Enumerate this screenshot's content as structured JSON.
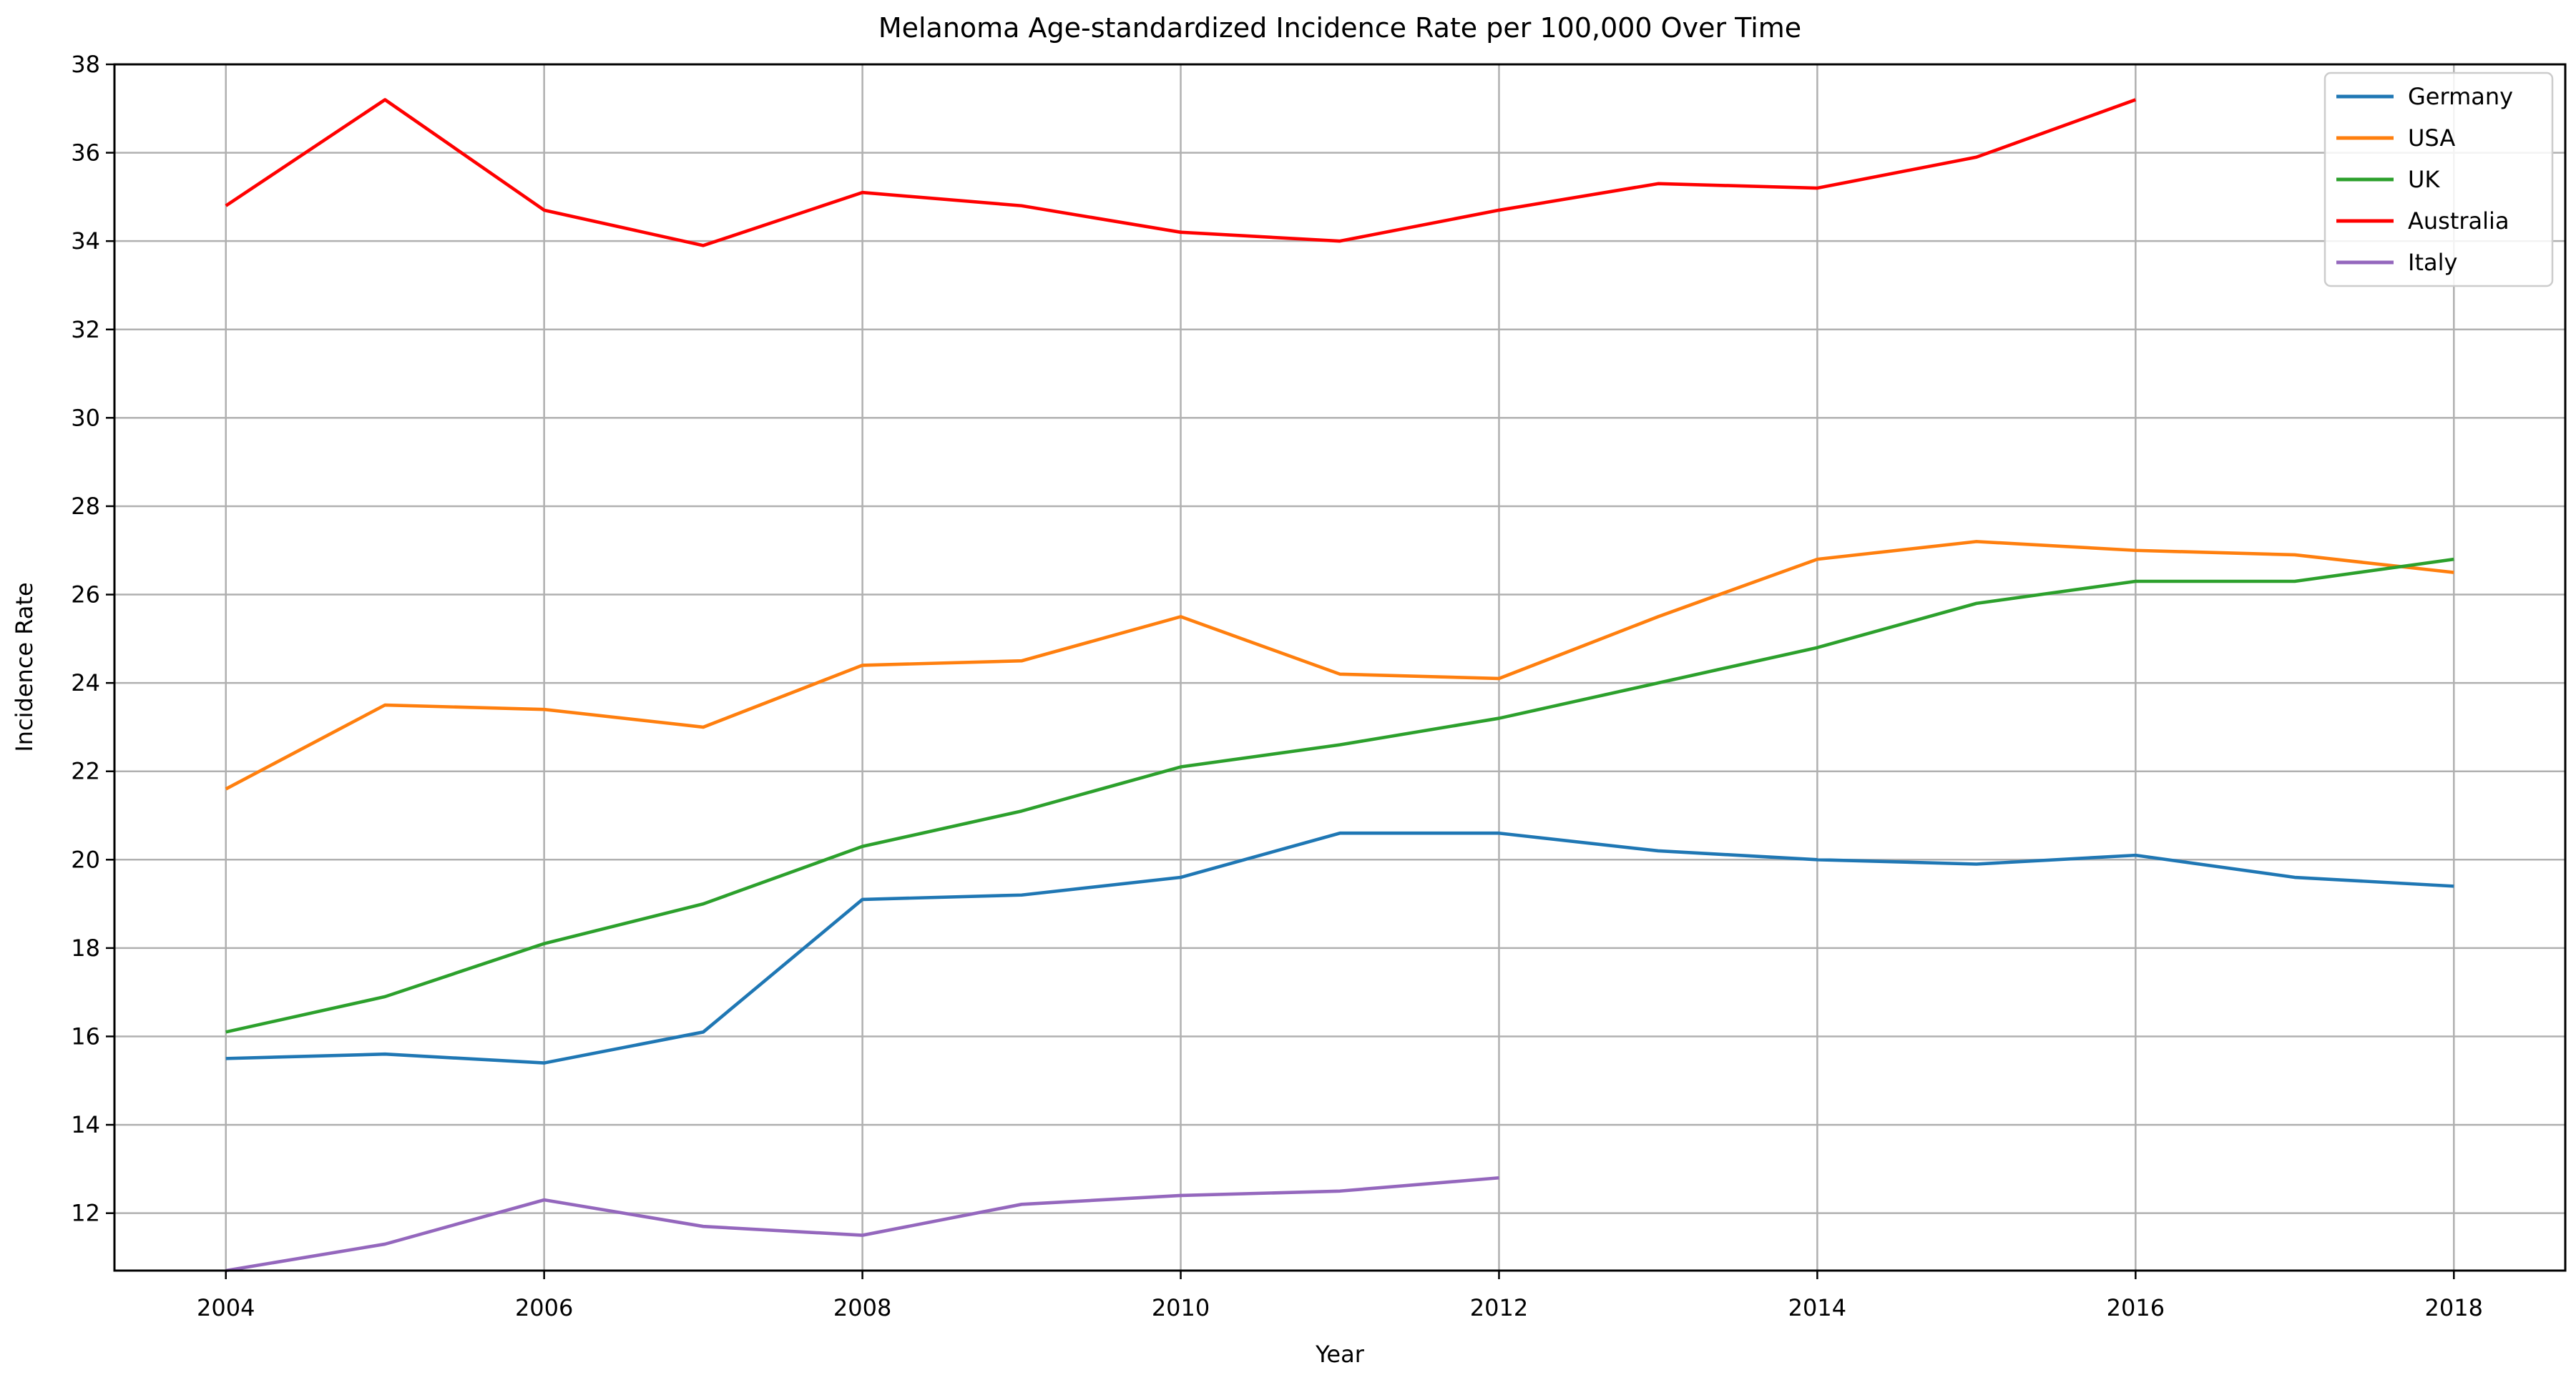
{
  "figure": {
    "background": "#ffffff",
    "grid_color": "#b0b0b0",
    "spine_color": "#000000",
    "legend_border_color": "#cccccc"
  },
  "chart_data": {
    "type": "line",
    "title": "Melanoma Age-standardized Incidence Rate per 100,000 Over Time",
    "xlabel": "Year",
    "ylabel": "Incidence Rate",
    "xlim": [
      2003.3,
      2018.7
    ],
    "ylim": [
      10.7,
      38
    ],
    "x_ticks": [
      2004,
      2006,
      2008,
      2010,
      2012,
      2014,
      2016,
      2018
    ],
    "y_ticks": [
      12,
      14,
      16,
      18,
      20,
      22,
      24,
      26,
      28,
      30,
      32,
      34,
      36,
      38
    ],
    "grid": true,
    "legend_position": "upper right",
    "series": [
      {
        "name": "Germany",
        "color": "#1f77b4",
        "x": [
          2004,
          2005,
          2006,
          2007,
          2008,
          2009,
          2010,
          2011,
          2012,
          2013,
          2014,
          2015,
          2016,
          2017,
          2018
        ],
        "values": [
          15.5,
          15.6,
          15.4,
          16.1,
          19.1,
          19.2,
          19.6,
          20.6,
          20.6,
          20.2,
          20.0,
          19.9,
          20.1,
          19.6,
          19.4
        ]
      },
      {
        "name": "USA",
        "color": "#ff7f0e",
        "x": [
          2004,
          2005,
          2006,
          2007,
          2008,
          2009,
          2010,
          2011,
          2012,
          2013,
          2014,
          2015,
          2016,
          2017,
          2018
        ],
        "values": [
          21.6,
          23.5,
          23.4,
          23.0,
          24.4,
          24.5,
          25.5,
          24.2,
          24.1,
          25.5,
          26.8,
          27.2,
          27.0,
          26.9,
          26.5
        ]
      },
      {
        "name": "UK",
        "color": "#2ca02c",
        "x": [
          2004,
          2005,
          2006,
          2007,
          2008,
          2009,
          2010,
          2011,
          2012,
          2013,
          2014,
          2015,
          2016,
          2017,
          2018
        ],
        "values": [
          16.1,
          16.9,
          18.1,
          19.0,
          20.3,
          21.1,
          22.1,
          22.6,
          23.2,
          24.0,
          24.8,
          25.8,
          26.3,
          26.3,
          26.8
        ]
      },
      {
        "name": "Australia",
        "color": "#ff0000",
        "x": [
          2004,
          2005,
          2006,
          2007,
          2008,
          2009,
          2010,
          2011,
          2012,
          2013,
          2014,
          2015,
          2016
        ],
        "values": [
          34.8,
          37.2,
          34.7,
          33.9,
          35.1,
          34.8,
          34.2,
          34.0,
          34.7,
          35.3,
          35.2,
          35.9,
          37.2
        ]
      },
      {
        "name": "Italy",
        "color": "#9467bd",
        "x": [
          2004,
          2005,
          2006,
          2007,
          2008,
          2009,
          2010,
          2011,
          2012
        ],
        "values": [
          10.7,
          11.3,
          12.3,
          11.7,
          11.5,
          12.2,
          12.4,
          12.5,
          12.8
        ]
      }
    ]
  }
}
